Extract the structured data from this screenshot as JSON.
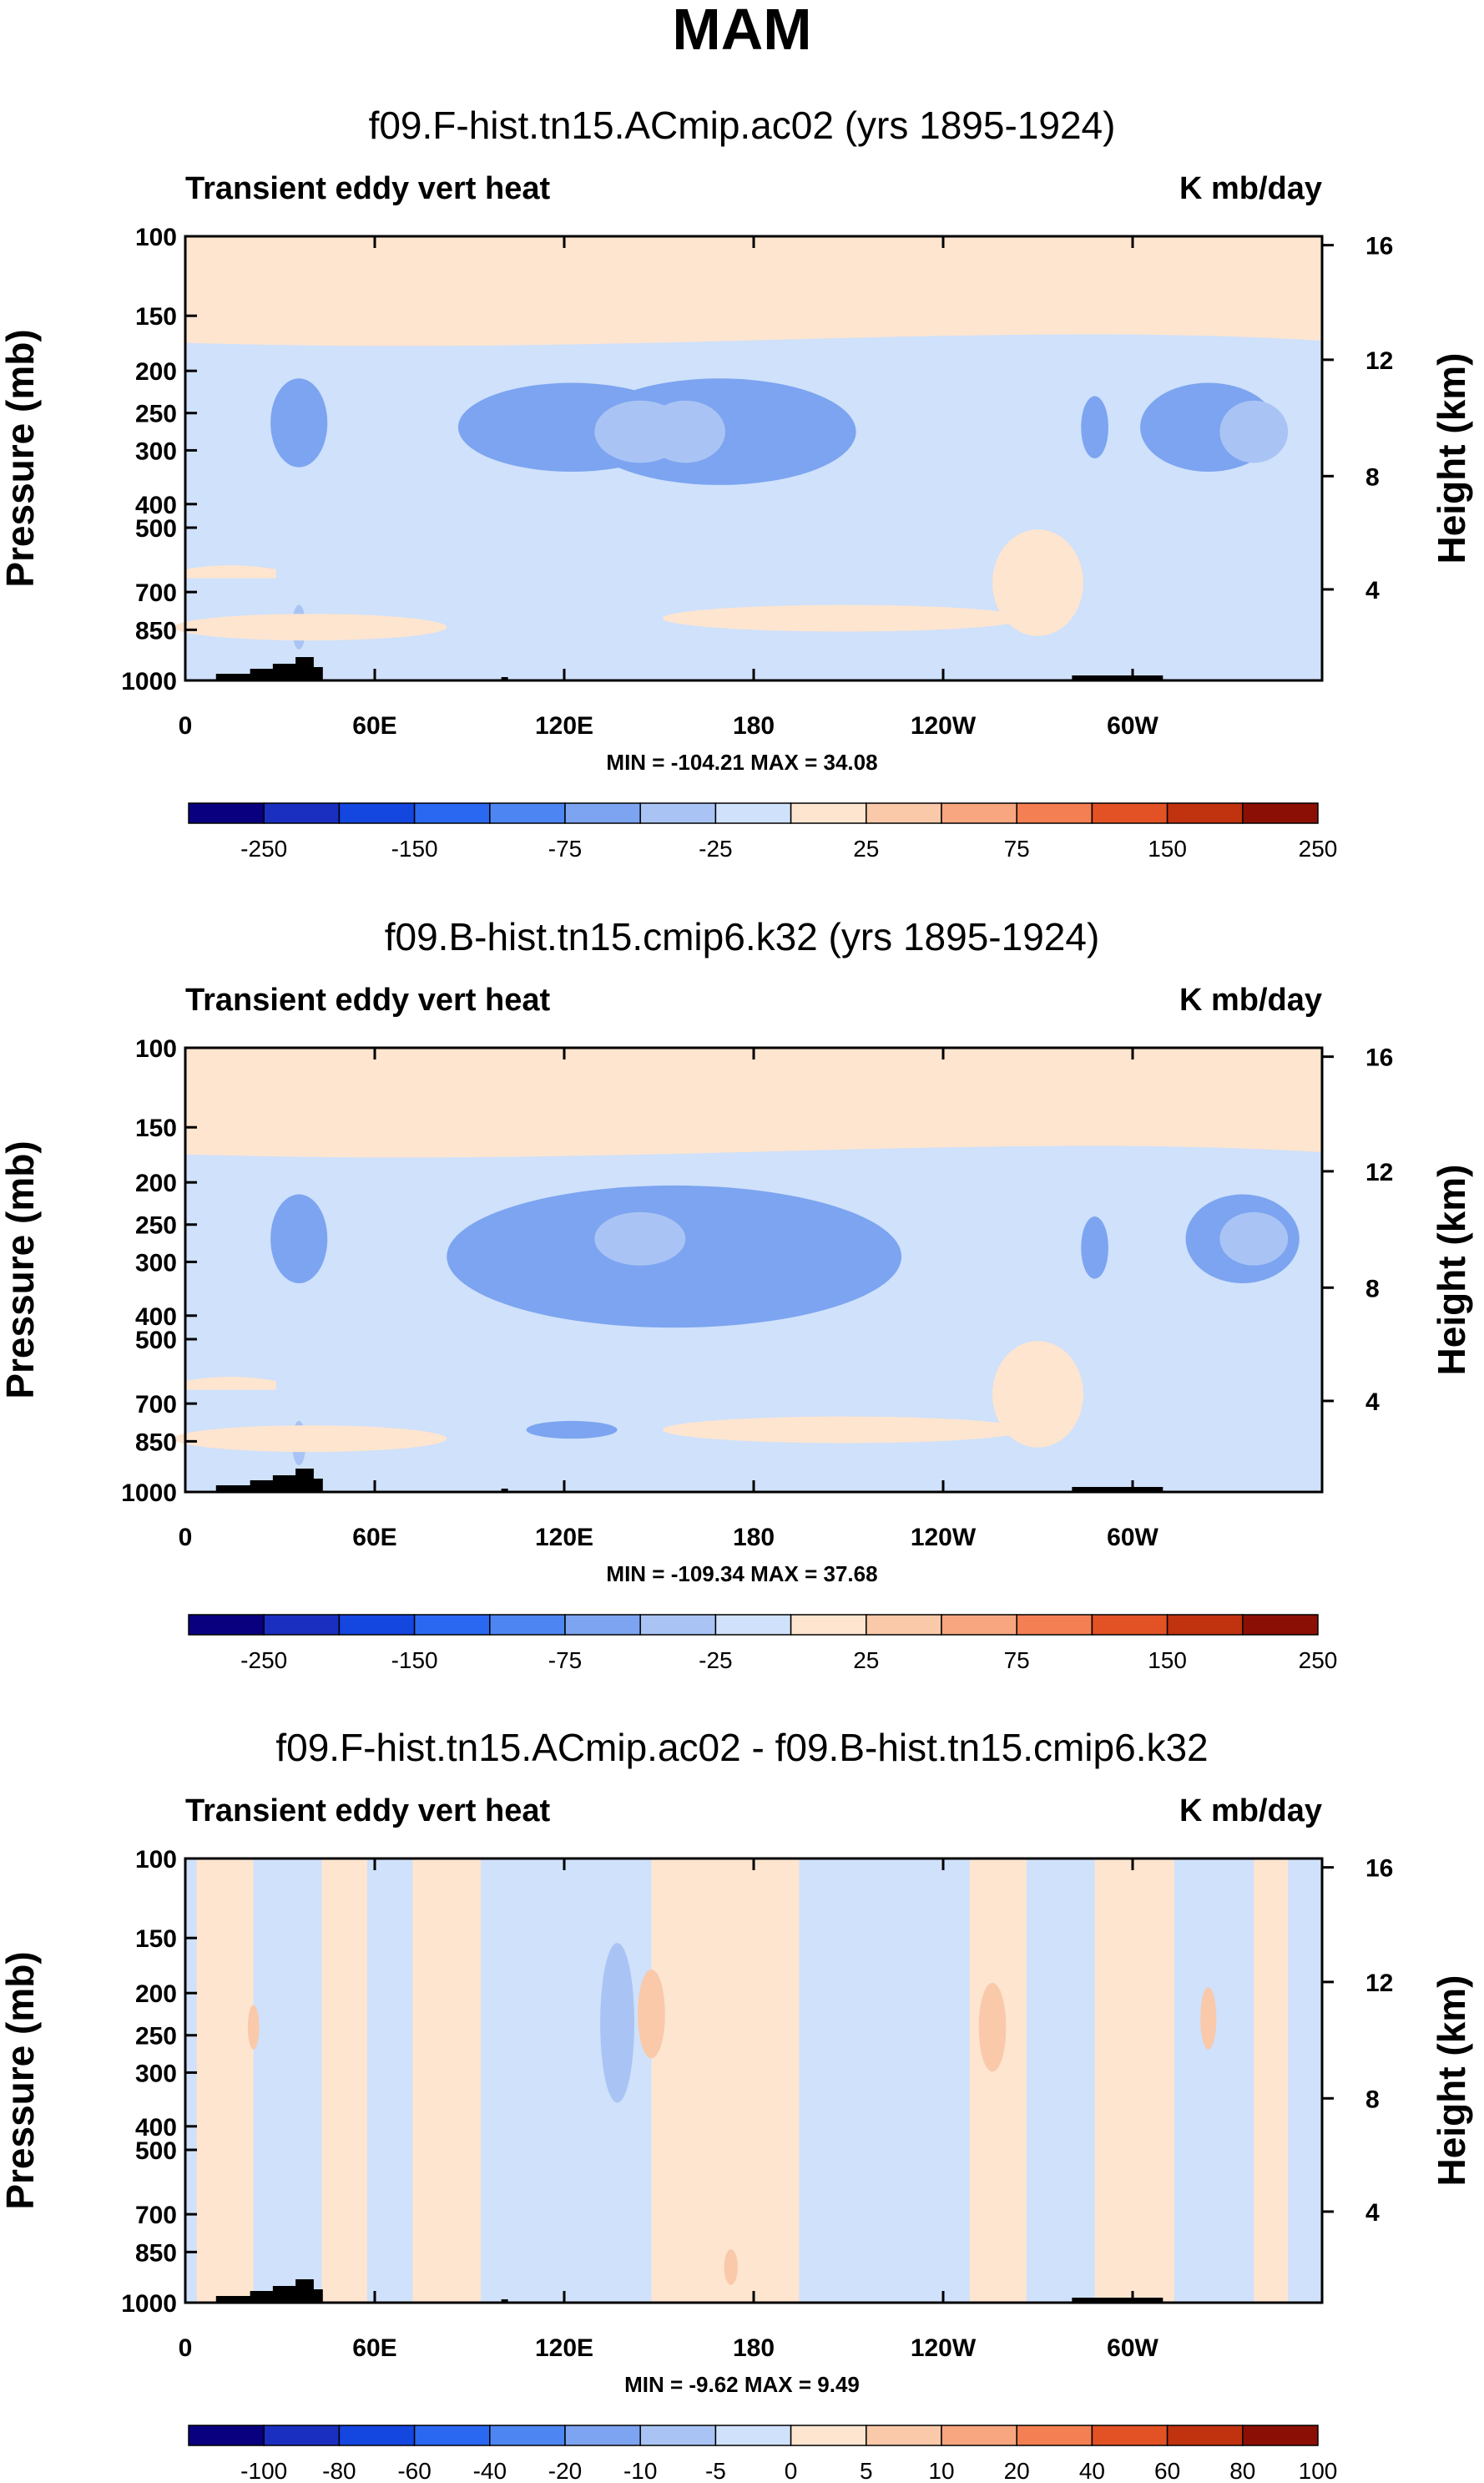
{
  "main_title": "MAM",
  "colors": {
    "scale": [
      "#08007f",
      "#1a2fc0",
      "#1446e0",
      "#2a68f2",
      "#4d86f2",
      "#7ca4f0",
      "#a9c4f4",
      "#cfe1fb",
      "#fde5d0",
      "#f9c9aa",
      "#f7a67f",
      "#f47f52",
      "#e35224",
      "#c1320f",
      "#8c0f05"
    ],
    "land": "#000000"
  },
  "chart_data": [
    {
      "type": "contour",
      "title": "f09.F-hist.tn15.ACmip.ac02 (yrs 1895-1924)",
      "left_label": "Transient eddy vert heat",
      "units": "K mb/day",
      "ylabel": "Pressure (mb)",
      "y2label": "Height (km)",
      "x_ticks": [
        "0",
        "60E",
        "120E",
        "180",
        "120W",
        "60W"
      ],
      "y_ticks": [
        "100",
        "150",
        "200",
        "250",
        "300",
        "400",
        "500",
        "700",
        "850",
        "1000"
      ],
      "y2_ticks": [
        "16",
        "12",
        "8",
        "4"
      ],
      "stats": "MIN = -104.21   MAX =  34.08",
      "colorbar_labels": [
        "-250",
        "-150",
        "-75",
        "-25",
        "25",
        "75",
        "150",
        "250"
      ]
    },
    {
      "type": "contour",
      "title": "f09.B-hist.tn15.cmip6.k32 (yrs 1895-1924)",
      "left_label": "Transient eddy vert heat",
      "units": "K mb/day",
      "ylabel": "Pressure (mb)",
      "y2label": "Height (km)",
      "x_ticks": [
        "0",
        "60E",
        "120E",
        "180",
        "120W",
        "60W"
      ],
      "y_ticks": [
        "100",
        "150",
        "200",
        "250",
        "300",
        "400",
        "500",
        "700",
        "850",
        "1000"
      ],
      "y2_ticks": [
        "16",
        "12",
        "8",
        "4"
      ],
      "stats": "MIN = -109.34   MAX =  37.68",
      "colorbar_labels": [
        "-250",
        "-150",
        "-75",
        "-25",
        "25",
        "75",
        "150",
        "250"
      ]
    },
    {
      "type": "contour",
      "title": "f09.F-hist.tn15.ACmip.ac02 - f09.B-hist.tn15.cmip6.k32",
      "left_label": "Transient eddy vert heat",
      "units": "K mb/day",
      "ylabel": "Pressure (mb)",
      "y2label": "Height (km)",
      "x_ticks": [
        "0",
        "60E",
        "120E",
        "180",
        "120W",
        "60W"
      ],
      "y_ticks": [
        "100",
        "150",
        "200",
        "250",
        "300",
        "400",
        "500",
        "700",
        "850",
        "1000"
      ],
      "y2_ticks": [
        "16",
        "12",
        "8",
        "4"
      ],
      "stats": "MIN =  -9.62   MAX =   9.49",
      "colorbar_labels": [
        "-100",
        "-80",
        "-60",
        "-40",
        "-20",
        "-10",
        "-5",
        "0",
        "5",
        "10",
        "20",
        "40",
        "60",
        "80",
        "100"
      ]
    }
  ]
}
